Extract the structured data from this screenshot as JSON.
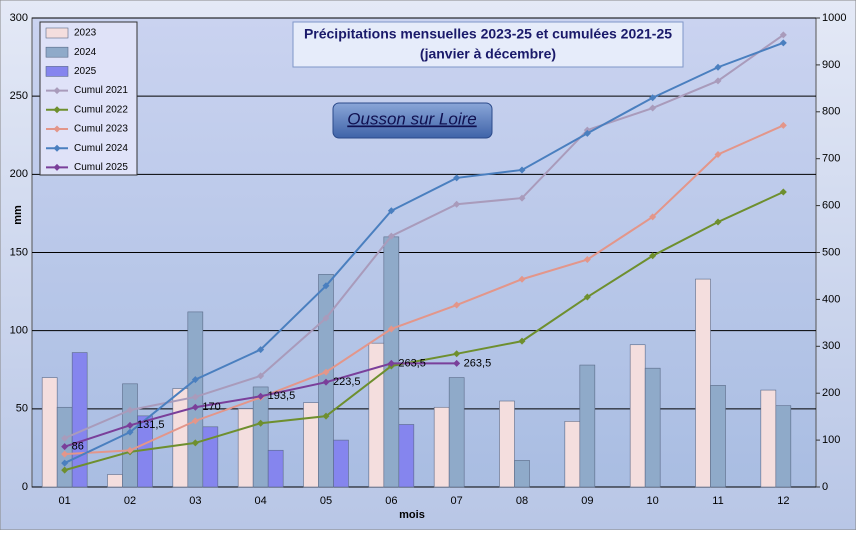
{
  "chart_data": {
    "type": "bar-line",
    "title": "Précipitations mensuelles 2023-25 et cumulées 2021-25",
    "subtitle": "(janvier à décembre)",
    "annotation": "Ousson sur Loire",
    "ylabel": "mm",
    "xlabel": "mois",
    "categories": [
      "01",
      "02",
      "03",
      "04",
      "05",
      "06",
      "07",
      "08",
      "09",
      "10",
      "11",
      "12"
    ],
    "ylim": [
      0,
      300
    ],
    "yticks": [
      0,
      50,
      100,
      150,
      200,
      250,
      300
    ],
    "y2lim": [
      0,
      1000
    ],
    "y2ticks": [
      0,
      100,
      200,
      300,
      400,
      500,
      600,
      700,
      800,
      900,
      1000
    ],
    "grid": true,
    "legend": "top-left",
    "series": [
      {
        "name": "2023",
        "kind": "bar",
        "color": "#f4dede",
        "values": [
          70,
          8,
          63,
          50,
          54,
          92,
          51,
          55,
          42,
          91,
          133,
          62
        ]
      },
      {
        "name": "2024",
        "kind": "bar",
        "color": "#8faac9",
        "values": [
          51,
          66,
          112,
          64,
          136,
          160,
          70,
          17,
          78,
          76,
          65,
          52
        ]
      },
      {
        "name": "2025",
        "kind": "bar",
        "color": "#8585ee",
        "values": [
          86,
          45.5,
          38.5,
          23.5,
          30,
          40,
          null,
          null,
          null,
          null,
          null,
          null
        ]
      },
      {
        "name": "Cumul 2021",
        "kind": "line",
        "axis": "y2",
        "color": "#a99bbb",
        "values": [
          104,
          164,
          192,
          237,
          360,
          535,
          603,
          616,
          761,
          808,
          866,
          964
        ]
      },
      {
        "name": "Cumul 2022",
        "kind": "line",
        "axis": "y2",
        "color": "#6e8f2e",
        "values": [
          36,
          75,
          94,
          136,
          151,
          258,
          284,
          311,
          405,
          493,
          565,
          629
        ]
      },
      {
        "name": "Cumul 2023",
        "kind": "line",
        "axis": "y2",
        "color": "#e3968a",
        "values": [
          70,
          78,
          141,
          191,
          245,
          337,
          388,
          443,
          485,
          576,
          709,
          771
        ]
      },
      {
        "name": "Cumul 2024",
        "kind": "line",
        "axis": "y2",
        "color": "#4a7fbf",
        "values": [
          51,
          117,
          229,
          293,
          429,
          589,
          659,
          676,
          754,
          830,
          895,
          947
        ]
      },
      {
        "name": "Cumul 2025",
        "kind": "line",
        "axis": "y2",
        "color": "#7a3f9a",
        "values": [
          86,
          131.5,
          170,
          193.5,
          223.5,
          263.5,
          263.5,
          null,
          null,
          null,
          null,
          null
        ],
        "value_labels": [
          "86",
          "131,5",
          "170",
          "193,5",
          "223,5",
          "263,5",
          "263,5",
          null,
          null,
          null,
          null,
          null
        ]
      }
    ]
  }
}
